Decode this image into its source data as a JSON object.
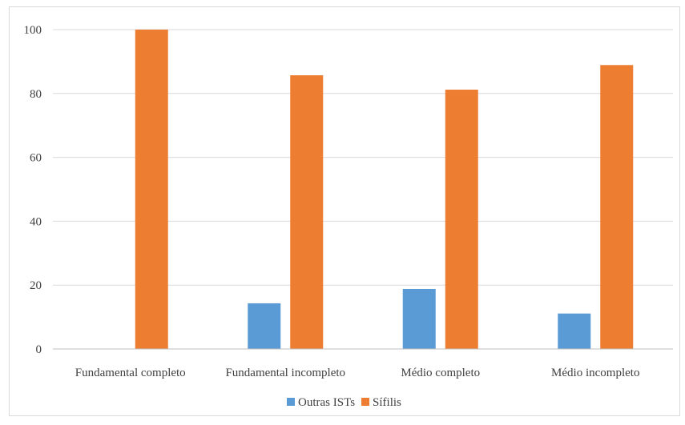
{
  "chart_data": {
    "type": "bar",
    "categories": [
      "Fundamental completo",
      "Fundamental incompleto",
      "Médio completo",
      "Médio incompleto"
    ],
    "series": [
      {
        "name": "Outras ISTs",
        "color": "#5b9bd5",
        "values": [
          0,
          14.3,
          18.8,
          11.1
        ]
      },
      {
        "name": "Sífilis",
        "color": "#ed7d31",
        "values": [
          100,
          85.7,
          81.2,
          88.9
        ]
      }
    ],
    "yticks": [
      0,
      20,
      40,
      60,
      80,
      100
    ],
    "ylim": [
      0,
      100
    ],
    "grid": true,
    "legend_position": "bottom"
  }
}
